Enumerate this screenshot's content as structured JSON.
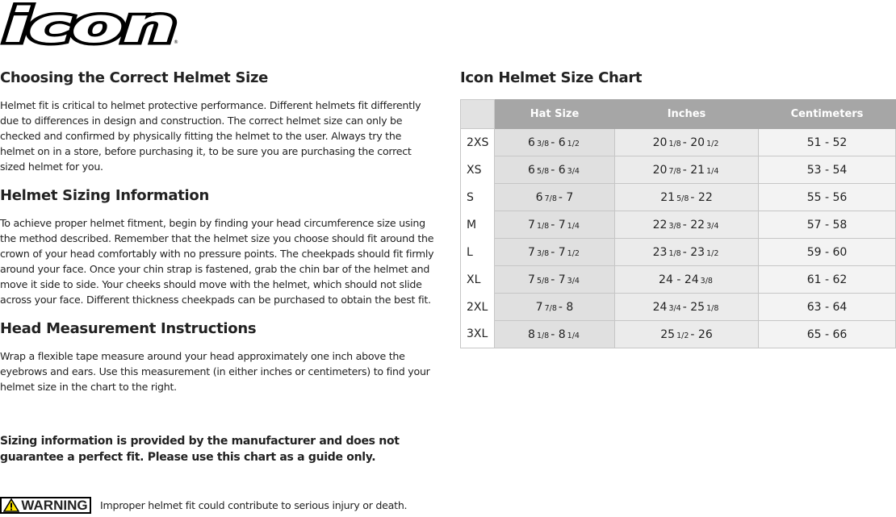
{
  "brand": {
    "logo_text": "icon"
  },
  "left": {
    "h1": "Choosing the Correct Helmet Size",
    "p1": "Helmet fit is critical to helmet protective performance. Different helmets fit differently due to differences in design and construction. The correct helmet size can only be checked and confirmed by physically fitting the helmet to the user. Always try the helmet on in a store, before purchasing it, to be sure you are purchasing the correct sized helmet for you.",
    "h2": "Helmet Sizing Information",
    "p2": "To achieve proper helmet fitment, begin by finding your head circumference size using the method described. Remember that the helmet size you choose should fit around the crown of your head comfortably with no pressure points. The cheekpads should fit firmly around your face. Once your chin strap is fastened, grab the chin bar of the helmet and move it side to side. Your cheeks should move with the helmet, which should not slide across your face. Different thickness cheekpads can be purchased to obtain the best fit.",
    "h3": "Head Measurement Instructions",
    "p3": "Wrap a flexible tape measure around your head approximately one inch above the eyebrows and ears. Use this measurement (in either inches or centimeters) to find your helmet size in the chart to the right.",
    "note": "Sizing information is provided by the manufacturer and does not guarantee a perfect fit. Please use this chart as a guide only.",
    "warning_badge": "WARNING",
    "warning_text": "Improper helmet fit could contribute to serious injury or death."
  },
  "chart": {
    "title": "Icon Helmet Size Chart",
    "headers": [
      "Hat Size",
      "Inches",
      "Centimeters"
    ],
    "colors": {
      "header": "#a6a6a6",
      "hat_col": "#e0e0e0",
      "inch_col": "#ebebeb",
      "cm_col": "#f3f3f3"
    },
    "rows": [
      {
        "size": "2XS",
        "hat": [
          "6",
          "3/8",
          "6",
          "1/2"
        ],
        "inch": [
          "20",
          "1/8",
          "20",
          "1/2"
        ],
        "cm": "51 - 52"
      },
      {
        "size": "XS",
        "hat": [
          "6",
          "5/8",
          "6",
          "3/4"
        ],
        "inch": [
          "20",
          "7/8",
          "21",
          "1/4"
        ],
        "cm": "53 - 54"
      },
      {
        "size": "S",
        "hat": [
          "6",
          "7/8",
          "7",
          ""
        ],
        "inch": [
          "21",
          "5/8",
          "22",
          ""
        ],
        "cm": "55 - 56"
      },
      {
        "size": "M",
        "hat": [
          "7",
          "1/8",
          "7",
          "1/4"
        ],
        "inch": [
          "22",
          "3/8",
          "22",
          "3/4"
        ],
        "cm": "57 - 58"
      },
      {
        "size": "L",
        "hat": [
          "7",
          "3/8",
          "7",
          "1/2"
        ],
        "inch": [
          "23",
          "1/8",
          "23",
          "1/2"
        ],
        "cm": "59 - 60"
      },
      {
        "size": "XL",
        "hat": [
          "7",
          "5/8",
          "7",
          "3/4"
        ],
        "inch": [
          "24",
          "",
          "24",
          "3/8"
        ],
        "cm": "61 - 62"
      },
      {
        "size": "2XL",
        "hat": [
          "7",
          "7/8",
          "8",
          ""
        ],
        "inch": [
          "24",
          "3/4",
          "25",
          "1/8"
        ],
        "cm": "63 - 64"
      },
      {
        "size": "3XL",
        "hat": [
          "8",
          "1/8",
          "8",
          "1/4"
        ],
        "inch": [
          "25",
          "1/2",
          "26",
          ""
        ],
        "cm": "65 - 66"
      }
    ]
  }
}
